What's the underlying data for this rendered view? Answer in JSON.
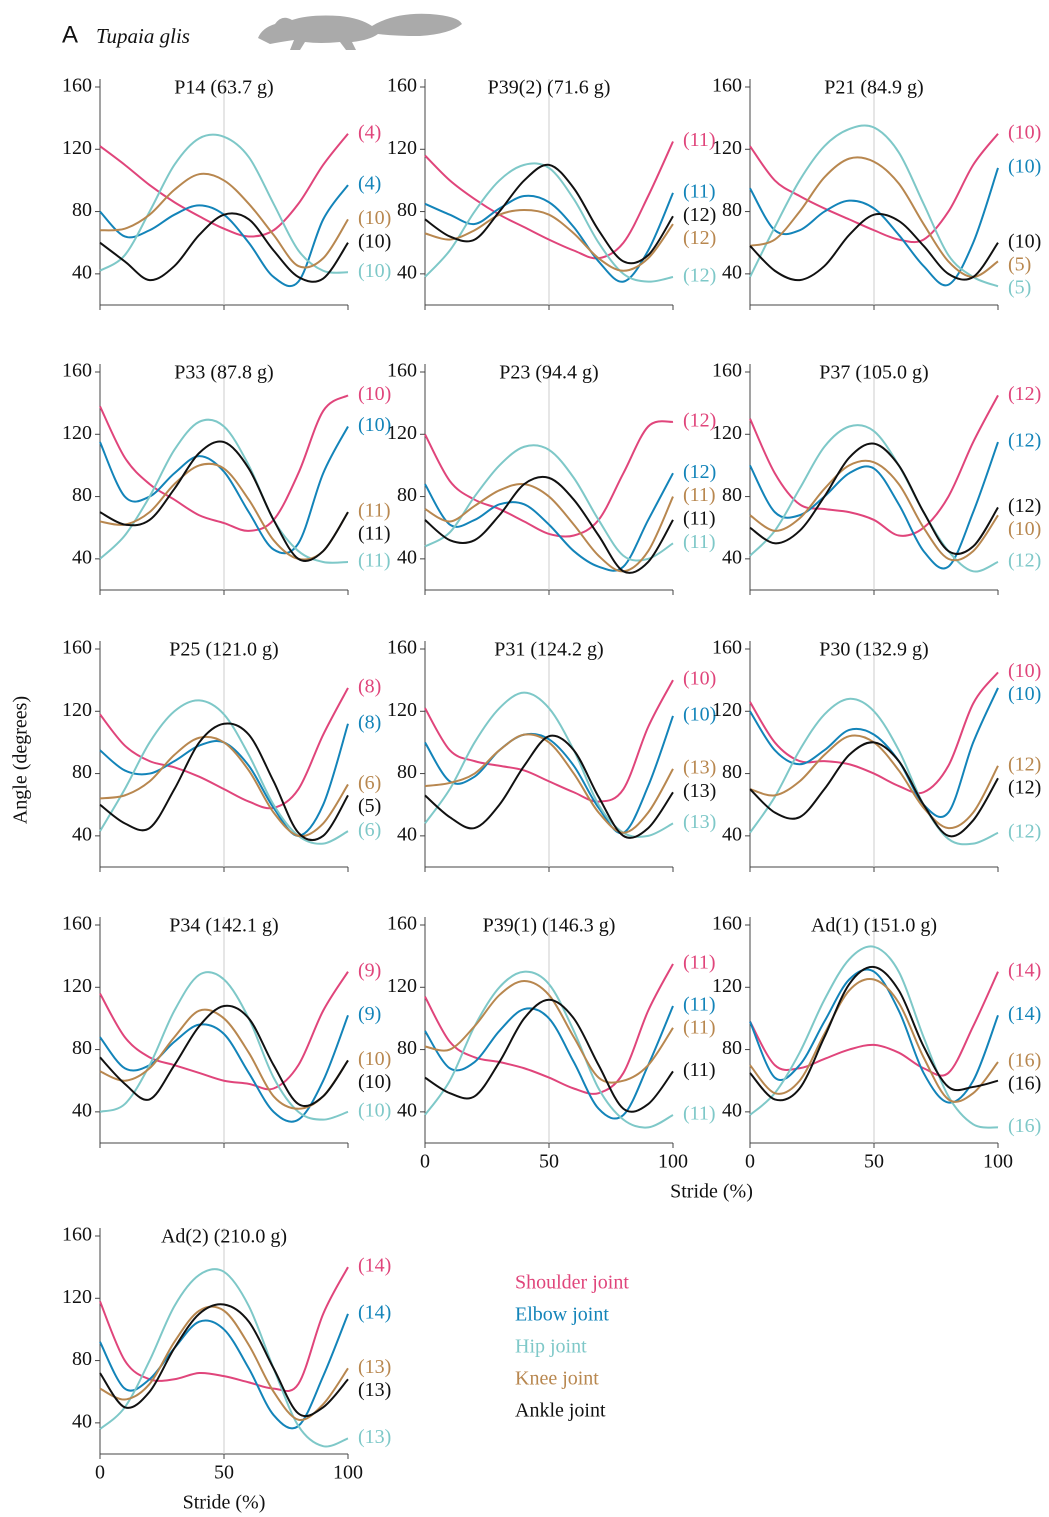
{
  "header": {
    "label": "A",
    "species": "Tupaia glis"
  },
  "legend": [
    {
      "name": "Shoulder joint",
      "color": "#e0457b"
    },
    {
      "name": "Elbow joint",
      "color": "#1384b9"
    },
    {
      "name": "Hip joint",
      "color": "#7ec8c8"
    },
    {
      "name": "Knee joint",
      "color": "#b8874f"
    },
    {
      "name": "Ankle joint",
      "color": "#111111"
    }
  ],
  "shared": {
    "ylabel": "Angle (degrees)",
    "x": [
      0,
      10,
      20,
      30,
      40,
      50,
      60,
      70,
      80,
      90,
      100
    ],
    "xlim": [
      0,
      100
    ],
    "xticks": [
      0,
      50,
      100
    ],
    "ylim": [
      20,
      160
    ],
    "yticks": [
      40,
      80,
      120,
      160
    ],
    "midline": 50
  },
  "chart_data": [
    {
      "type": "line",
      "title": "P14 (63.7 g)",
      "series": [
        {
          "label": "(4)",
          "values": [
            122,
            110,
            97,
            86,
            77,
            69,
            64,
            68,
            85,
            110,
            130
          ]
        },
        {
          "label": "(4)",
          "values": [
            80,
            64,
            68,
            78,
            84,
            78,
            60,
            38,
            35,
            75,
            97
          ]
        },
        {
          "label": "(10)",
          "values": [
            42,
            52,
            80,
            110,
            127,
            128,
            115,
            85,
            55,
            42,
            41
          ]
        },
        {
          "label": "(10)",
          "values": [
            68,
            69,
            78,
            94,
            104,
            100,
            85,
            65,
            45,
            50,
            75
          ]
        },
        {
          "label": "(10)",
          "values": [
            60,
            48,
            36,
            45,
            65,
            78,
            75,
            55,
            38,
            37,
            60
          ]
        }
      ]
    },
    {
      "type": "line",
      "title": "P39(2) (71.6 g)",
      "series": [
        {
          "label": "(11)",
          "values": [
            116,
            100,
            88,
            78,
            70,
            62,
            55,
            50,
            60,
            90,
            125
          ]
        },
        {
          "label": "(11)",
          "values": [
            85,
            78,
            72,
            82,
            90,
            86,
            70,
            48,
            35,
            55,
            92
          ]
        },
        {
          "label": "(12)",
          "values": [
            38,
            55,
            80,
            100,
            110,
            108,
            88,
            60,
            40,
            35,
            38
          ]
        },
        {
          "label": "(12)",
          "values": [
            66,
            62,
            68,
            78,
            81,
            78,
            66,
            50,
            42,
            50,
            72
          ]
        },
        {
          "label": "(12)",
          "values": [
            75,
            64,
            62,
            80,
            100,
            110,
            95,
            68,
            48,
            52,
            77
          ]
        }
      ]
    },
    {
      "type": "line",
      "title": "P21 (84.9 g)",
      "series": [
        {
          "label": "(10)",
          "values": [
            122,
            100,
            90,
            82,
            75,
            68,
            62,
            62,
            80,
            110,
            130
          ]
        },
        {
          "label": "(10)",
          "values": [
            95,
            68,
            68,
            80,
            87,
            82,
            65,
            45,
            33,
            60,
            108
          ]
        },
        {
          "label": "(5)",
          "values": [
            38,
            70,
            100,
            122,
            133,
            134,
            118,
            85,
            52,
            38,
            32
          ]
        },
        {
          "label": "(5)",
          "values": [
            58,
            62,
            80,
            102,
            114,
            112,
            98,
            72,
            48,
            38,
            48
          ]
        },
        {
          "label": "(10)",
          "values": [
            58,
            42,
            36,
            45,
            65,
            78,
            74,
            58,
            40,
            38,
            60
          ]
        }
      ]
    },
    {
      "type": "line",
      "title": "P33 (87.8 g)",
      "series": [
        {
          "label": "(10)",
          "values": [
            138,
            105,
            88,
            78,
            68,
            63,
            58,
            65,
            95,
            135,
            145
          ]
        },
        {
          "label": "(10)",
          "values": [
            115,
            80,
            80,
            95,
            106,
            96,
            70,
            46,
            50,
            95,
            125
          ]
        },
        {
          "label": "(11)",
          "values": [
            40,
            55,
            80,
            110,
            128,
            125,
            100,
            65,
            45,
            38,
            38
          ]
        },
        {
          "label": "(11)",
          "values": [
            64,
            62,
            70,
            88,
            100,
            98,
            78,
            52,
            40,
            45,
            70
          ]
        },
        {
          "label": "(11)",
          "values": [
            70,
            62,
            65,
            85,
            108,
            115,
            98,
            65,
            40,
            45,
            70
          ]
        }
      ]
    },
    {
      "type": "line",
      "title": "P23 (94.4 g)",
      "series": [
        {
          "label": "(12)",
          "values": [
            120,
            90,
            78,
            72,
            64,
            56,
            55,
            65,
            95,
            125,
            128
          ]
        },
        {
          "label": "(12)",
          "values": [
            88,
            62,
            65,
            75,
            75,
            62,
            45,
            35,
            35,
            65,
            95
          ]
        },
        {
          "label": "(11)",
          "values": [
            48,
            57,
            80,
            100,
            112,
            110,
            92,
            65,
            42,
            40,
            50
          ]
        },
        {
          "label": "(11)",
          "values": [
            72,
            64,
            74,
            84,
            88,
            80,
            62,
            42,
            32,
            45,
            80
          ]
        },
        {
          "label": "(11)",
          "values": [
            65,
            52,
            52,
            68,
            88,
            92,
            78,
            55,
            32,
            38,
            65
          ]
        }
      ]
    },
    {
      "type": "line",
      "title": "P37 (105.0 g)",
      "series": [
        {
          "label": "(12)",
          "values": [
            130,
            95,
            75,
            72,
            70,
            65,
            55,
            60,
            80,
            115,
            145
          ]
        },
        {
          "label": "(12)",
          "values": [
            100,
            70,
            68,
            80,
            95,
            98,
            75,
            45,
            35,
            70,
            115
          ]
        },
        {
          "label": "(12)",
          "values": [
            42,
            58,
            85,
            112,
            125,
            122,
            100,
            70,
            45,
            32,
            38
          ]
        },
        {
          "label": "(10)",
          "values": [
            68,
            58,
            66,
            85,
            100,
            102,
            88,
            60,
            40,
            45,
            68
          ]
        },
        {
          "label": "(12)",
          "values": [
            60,
            50,
            58,
            80,
            105,
            114,
            100,
            70,
            45,
            48,
            73
          ]
        }
      ]
    },
    {
      "type": "line",
      "title": "P25 (121.0 g)",
      "series": [
        {
          "label": "(8)",
          "values": [
            118,
            98,
            88,
            84,
            78,
            70,
            62,
            58,
            70,
            105,
            135
          ]
        },
        {
          "label": "(8)",
          "values": [
            95,
            82,
            80,
            88,
            98,
            100,
            85,
            58,
            40,
            60,
            112
          ]
        },
        {
          "label": "(6)",
          "values": [
            43,
            70,
            100,
            120,
            127,
            118,
            92,
            60,
            40,
            35,
            43
          ]
        },
        {
          "label": "(6)",
          "values": [
            64,
            66,
            75,
            92,
            103,
            100,
            82,
            55,
            40,
            48,
            73
          ]
        },
        {
          "label": "(5)",
          "values": [
            60,
            48,
            45,
            70,
            100,
            112,
            105,
            75,
            42,
            40,
            66
          ]
        }
      ]
    },
    {
      "type": "line",
      "title": "P31 (124.2 g)",
      "series": [
        {
          "label": "(10)",
          "values": [
            122,
            95,
            88,
            85,
            82,
            75,
            68,
            62,
            70,
            110,
            140
          ]
        },
        {
          "label": "(10)",
          "values": [
            100,
            75,
            78,
            95,
            105,
            102,
            85,
            58,
            42,
            72,
            117
          ]
        },
        {
          "label": "(13)",
          "values": [
            48,
            70,
            100,
            122,
            132,
            122,
            95,
            60,
            42,
            40,
            48
          ]
        },
        {
          "label": "(13)",
          "values": [
            72,
            74,
            80,
            95,
            105,
            100,
            80,
            55,
            42,
            55,
            83
          ]
        },
        {
          "label": "(13)",
          "values": [
            66,
            52,
            45,
            60,
            85,
            104,
            95,
            65,
            40,
            45,
            68
          ]
        }
      ]
    },
    {
      "type": "line",
      "title": "P30 (132.9 g)",
      "series": [
        {
          "label": "(10)",
          "values": [
            126,
            100,
            88,
            88,
            86,
            80,
            72,
            68,
            85,
            125,
            145
          ]
        },
        {
          "label": "(10)",
          "values": [
            120,
            95,
            86,
            95,
            108,
            105,
            88,
            60,
            55,
            100,
            135
          ]
        },
        {
          "label": "(12)",
          "values": [
            42,
            65,
            95,
            118,
            128,
            120,
            95,
            60,
            38,
            35,
            42
          ]
        },
        {
          "label": "(12)",
          "values": [
            70,
            66,
            75,
            92,
            104,
            100,
            82,
            58,
            45,
            55,
            85
          ]
        },
        {
          "label": "(12)",
          "values": [
            70,
            55,
            52,
            70,
            92,
            100,
            88,
            60,
            40,
            50,
            77
          ]
        }
      ]
    },
    {
      "type": "line",
      "title": "P34 (142.1 g)",
      "series": [
        {
          "label": "(9)",
          "values": [
            116,
            88,
            75,
            70,
            65,
            60,
            58,
            55,
            70,
            105,
            130
          ]
        },
        {
          "label": "(9)",
          "values": [
            88,
            68,
            70,
            85,
            96,
            90,
            65,
            40,
            35,
            60,
            102
          ]
        },
        {
          "label": "(10)",
          "values": [
            40,
            45,
            70,
            105,
            128,
            125,
            100,
            62,
            40,
            35,
            40
          ]
        },
        {
          "label": "(10)",
          "values": [
            66,
            60,
            68,
            88,
            105,
            100,
            78,
            50,
            42,
            50,
            73
          ]
        },
        {
          "label": "(10)",
          "values": [
            75,
            58,
            48,
            70,
            95,
            108,
            100,
            70,
            45,
            50,
            73
          ]
        }
      ]
    },
    {
      "type": "line",
      "title": "P39(1) (146.3 g)",
      "x_tick_labels": true,
      "xlabel": "Stride (%)",
      "series": [
        {
          "label": "(11)",
          "values": [
            114,
            85,
            75,
            72,
            68,
            62,
            55,
            52,
            65,
            105,
            135
          ]
        },
        {
          "label": "(11)",
          "values": [
            92,
            68,
            72,
            92,
            106,
            100,
            72,
            42,
            38,
            70,
            108
          ]
        },
        {
          "label": "(11)",
          "values": [
            38,
            60,
            95,
            120,
            130,
            122,
            92,
            55,
            35,
            30,
            38
          ]
        },
        {
          "label": "(11)",
          "values": [
            82,
            80,
            95,
            115,
            124,
            115,
            88,
            62,
            60,
            70,
            94
          ]
        },
        {
          "label": "(11)",
          "values": [
            62,
            52,
            50,
            72,
            100,
            112,
            100,
            70,
            42,
            45,
            66
          ]
        }
      ]
    },
    {
      "type": "line",
      "title": "Ad(1) (151.0 g)",
      "x_tick_labels": true,
      "series": [
        {
          "label": "(14)",
          "values": [
            98,
            70,
            68,
            74,
            80,
            83,
            78,
            68,
            65,
            95,
            130
          ]
        },
        {
          "label": "(14)",
          "values": [
            98,
            62,
            70,
            98,
            125,
            130,
            105,
            65,
            46,
            60,
            102
          ]
        },
        {
          "label": "(16)",
          "values": [
            38,
            52,
            78,
            112,
            138,
            146,
            130,
            88,
            50,
            32,
            30
          ]
        },
        {
          "label": "(16)",
          "values": [
            70,
            52,
            60,
            90,
            118,
            125,
            110,
            75,
            48,
            52,
            72
          ]
        },
        {
          "label": "(16)",
          "values": [
            65,
            48,
            55,
            88,
            122,
            133,
            118,
            82,
            56,
            56,
            60
          ]
        }
      ]
    },
    {
      "type": "line",
      "title": "Ad(2) (210.0 g)",
      "x_tick_labels": true,
      "xlabel": "Stride (%)",
      "series": [
        {
          "label": "(14)",
          "values": [
            118,
            80,
            68,
            68,
            72,
            70,
            66,
            62,
            65,
            110,
            140
          ]
        },
        {
          "label": "(14)",
          "values": [
            92,
            62,
            68,
            88,
            105,
            100,
            75,
            45,
            38,
            70,
            110
          ]
        },
        {
          "label": "(13)",
          "values": [
            36,
            50,
            80,
            115,
            135,
            137,
            115,
            75,
            38,
            25,
            30
          ]
        },
        {
          "label": "(13)",
          "values": [
            62,
            55,
            65,
            92,
            112,
            112,
            90,
            60,
            42,
            52,
            75
          ]
        },
        {
          "label": "(13)",
          "values": [
            72,
            50,
            60,
            88,
            110,
            116,
            105,
            75,
            46,
            50,
            68
          ]
        }
      ]
    }
  ]
}
